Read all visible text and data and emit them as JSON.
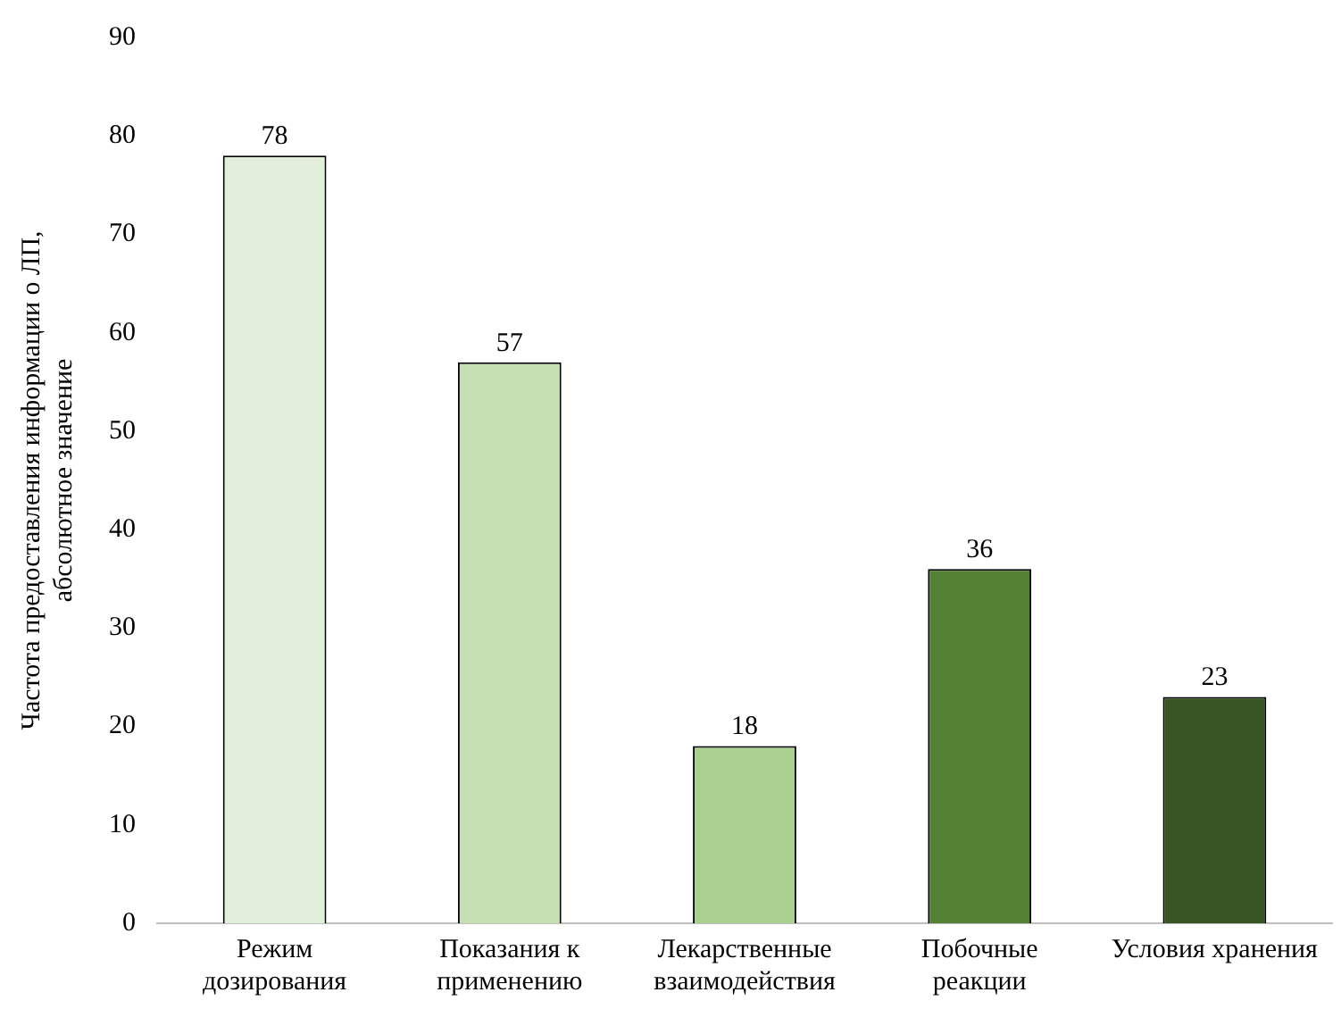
{
  "chart_data": {
    "type": "bar",
    "ylabel": "Частота предоставления информации о ЛП, абсолютное значение",
    "categories": [
      "Режим дозирования",
      "Показания к применению",
      "Лекарственные взаимодействия",
      "Побочные реакции",
      "Условия хранения"
    ],
    "values": [
      78,
      57,
      18,
      36,
      23
    ],
    "colors": [
      "#e2efda",
      "#c6e0b4",
      "#a9d08e",
      "#548235",
      "#375623"
    ],
    "ylim": [
      0,
      90
    ],
    "yticks": [
      0,
      10,
      20,
      30,
      40,
      50,
      60,
      70,
      80,
      90
    ],
    "grid": false,
    "legend": false,
    "data_labels": true
  }
}
